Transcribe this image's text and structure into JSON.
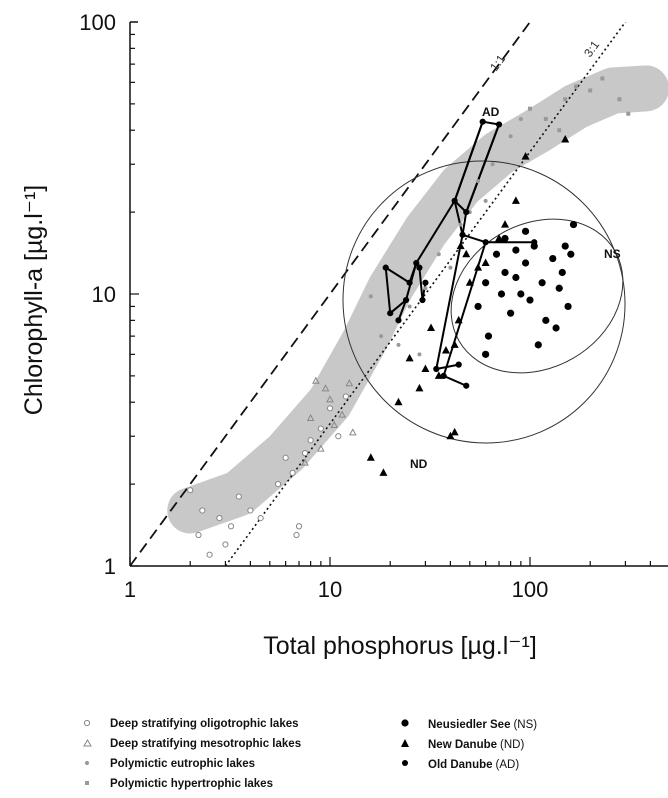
{
  "chart_data": {
    "type": "scatter",
    "xlabel": "Total phosphorus [µg.l⁻¹]",
    "ylabel": "Chlorophyll-a [µg.l⁻¹]",
    "x_scale": "log",
    "y_scale": "log",
    "xlim": [
      1,
      500
    ],
    "ylim": [
      1,
      100
    ],
    "x_ticks": [
      "1",
      "10",
      "100"
    ],
    "y_ticks": [
      "1",
      "10",
      "100"
    ],
    "grid": false,
    "legend_position": "bottom",
    "reference_lines": [
      {
        "label": "1:1",
        "ratio": 1,
        "style": "dashed"
      },
      {
        "label": "3:1",
        "ratio": 3,
        "style": "dotted"
      }
    ],
    "annotations": [
      "AD",
      "NS",
      "ND"
    ],
    "band_color": "#c8c8c8",
    "series": [
      {
        "name": "Deep stratifying oligotrophic lakes",
        "marker": "open-circle",
        "points": [
          [
            2.0,
            1.9
          ],
          [
            2.3,
            1.6
          ],
          [
            2.5,
            1.1
          ],
          [
            2.8,
            1.5
          ],
          [
            3.2,
            1.4
          ],
          [
            3.5,
            1.8
          ],
          [
            4.0,
            1.6
          ],
          [
            4.5,
            1.5
          ],
          [
            5.5,
            2.0
          ],
          [
            6.0,
            2.5
          ],
          [
            6.5,
            2.2
          ],
          [
            7.0,
            1.4
          ],
          [
            7.5,
            2.6
          ],
          [
            8.0,
            2.9
          ],
          [
            9.0,
            3.2
          ],
          [
            10.0,
            3.8
          ],
          [
            11.0,
            3.0
          ],
          [
            12.0,
            4.2
          ],
          [
            2.2,
            1.3
          ],
          [
            3.0,
            1.2
          ],
          [
            6.8,
            1.3
          ]
        ]
      },
      {
        "name": "Deep stratifying mesotrophic lakes",
        "marker": "open-triangle",
        "points": [
          [
            7.5,
            2.4
          ],
          [
            8.0,
            3.5
          ],
          [
            8.5,
            4.8
          ],
          [
            9.5,
            4.5
          ],
          [
            10.5,
            3.3
          ],
          [
            11.5,
            3.6
          ],
          [
            13.0,
            3.1
          ],
          [
            9.0,
            2.7
          ],
          [
            10.0,
            4.1
          ],
          [
            12.5,
            4.7
          ]
        ]
      },
      {
        "name": "Polymictic eutrophic lakes",
        "marker": "small-dot",
        "points": [
          [
            16.0,
            9.8
          ],
          [
            18.0,
            7.0
          ],
          [
            22.0,
            6.5
          ],
          [
            25.0,
            9.0
          ],
          [
            28.0,
            6.0
          ],
          [
            30.0,
            10.5
          ],
          [
            35.0,
            14.0
          ],
          [
            40.0,
            12.5
          ],
          [
            45.0,
            18.0
          ],
          [
            50.0,
            20.0
          ],
          [
            55.0,
            26.0
          ],
          [
            60.0,
            22.0
          ],
          [
            65.0,
            30.0
          ],
          [
            80.0,
            38.0
          ],
          [
            90.0,
            44.0
          ]
        ]
      },
      {
        "name": "Polymictic hypertrophic lakes",
        "marker": "small-square",
        "points": [
          [
            100.0,
            48.0
          ],
          [
            120.0,
            44.0
          ],
          [
            150.0,
            52.0
          ],
          [
            170.0,
            58.0
          ],
          [
            200.0,
            56.0
          ],
          [
            230.0,
            62.0
          ],
          [
            280.0,
            52.0
          ],
          [
            310.0,
            46.0
          ],
          [
            140.0,
            40.0
          ]
        ]
      },
      {
        "name": "Neusiedler See",
        "abbr": "(NS)",
        "marker": "filled-circle",
        "points": [
          [
            55.0,
            9.0
          ],
          [
            60.0,
            11.0
          ],
          [
            62.0,
            7.0
          ],
          [
            68.0,
            14.0
          ],
          [
            72.0,
            10.0
          ],
          [
            75.0,
            12.0
          ],
          [
            80.0,
            8.5
          ],
          [
            85.0,
            11.5
          ],
          [
            90.0,
            10.0
          ],
          [
            95.0,
            13.0
          ],
          [
            100.0,
            9.5
          ],
          [
            105.0,
            15.0
          ],
          [
            110.0,
            6.5
          ],
          [
            115.0,
            11.0
          ],
          [
            120.0,
            8.0
          ],
          [
            130.0,
            13.5
          ],
          [
            135.0,
            7.5
          ],
          [
            140.0,
            10.5
          ],
          [
            145.0,
            12.0
          ],
          [
            150.0,
            15.0
          ],
          [
            155.0,
            9.0
          ],
          [
            160.0,
            14.0
          ],
          [
            165.0,
            18.0
          ],
          [
            75.0,
            16.0
          ],
          [
            85.0,
            14.5
          ],
          [
            60.0,
            6.0
          ],
          [
            95.0,
            17.0
          ]
        ]
      },
      {
        "name": "New Danube",
        "abbr": "(ND)",
        "marker": "filled-triangle",
        "points": [
          [
            16.0,
            2.5
          ],
          [
            18.5,
            2.2
          ],
          [
            22.0,
            4.0
          ],
          [
            25.0,
            5.8
          ],
          [
            28.0,
            4.5
          ],
          [
            30.0,
            5.3
          ],
          [
            32.0,
            7.5
          ],
          [
            35.0,
            5.0
          ],
          [
            38.0,
            6.2
          ],
          [
            40.0,
            3.0
          ],
          [
            42.0,
            6.5
          ],
          [
            44.0,
            8.0
          ],
          [
            45.0,
            15.0
          ],
          [
            48.0,
            14.0
          ],
          [
            50.0,
            11.0
          ],
          [
            55.0,
            12.5
          ],
          [
            60.0,
            13.0
          ],
          [
            70.0,
            16.0
          ],
          [
            75.0,
            18.0
          ],
          [
            85.0,
            22.0
          ],
          [
            95.0,
            32.0
          ],
          [
            150.0,
            37.0
          ],
          [
            42.0,
            3.1
          ]
        ]
      },
      {
        "name": "Old Danube",
        "abbr": "(AD)",
        "marker": "filled-circle-small",
        "points": [
          [
            19.0,
            12.5
          ],
          [
            20.0,
            8.5
          ],
          [
            22.0,
            8.0
          ],
          [
            24.0,
            9.5
          ],
          [
            25.0,
            11.0
          ],
          [
            27.0,
            13.0
          ],
          [
            28.0,
            12.5
          ],
          [
            29.0,
            9.5
          ],
          [
            30.0,
            11.0
          ],
          [
            42.0,
            22.0
          ],
          [
            48.0,
            20.0
          ],
          [
            58.0,
            43.0
          ],
          [
            70.0,
            42.0
          ],
          [
            46.0,
            16.5
          ],
          [
            60.0,
            15.5
          ],
          [
            105.0,
            15.5
          ],
          [
            34.0,
            5.3
          ],
          [
            44.0,
            5.5
          ],
          [
            37.0,
            5.0
          ],
          [
            48.0,
            4.6
          ]
        ]
      }
    ]
  },
  "legend": {
    "items": [
      {
        "label": "Deep stratifying oligotrophic lakes",
        "abbr": ""
      },
      {
        "label": "Deep stratifying mesotrophic lakes",
        "abbr": ""
      },
      {
        "label": "Polymictic eutrophic lakes",
        "abbr": ""
      },
      {
        "label": "Polymictic hypertrophic lakes",
        "abbr": ""
      },
      {
        "label": "Neusiedler See",
        "abbr": "(NS)"
      },
      {
        "label": "New Danube",
        "abbr": "(ND)"
      },
      {
        "label": "Old Danube",
        "abbr": "(AD)"
      }
    ]
  }
}
